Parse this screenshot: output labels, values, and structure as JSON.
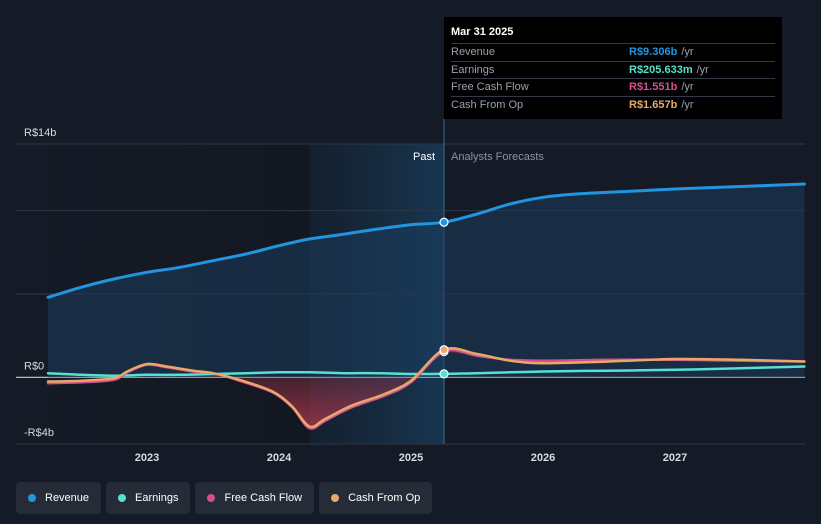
{
  "chart_data": {
    "type": "line",
    "currency": "R$",
    "x_domain": [
      2022.25,
      2027.98
    ],
    "ylim": [
      -4,
      14
    ],
    "y_axis_labels": [
      {
        "value": 14,
        "label": "R$14b"
      },
      {
        "value": 0,
        "label": "R$0"
      },
      {
        "value": -4,
        "label": "-R$4b"
      }
    ],
    "gridlines": [
      14,
      10,
      5,
      0,
      -4
    ],
    "x_ticks": [
      {
        "value": 2023,
        "label": "2023"
      },
      {
        "value": 2024,
        "label": "2024"
      },
      {
        "value": 2025,
        "label": "2025"
      },
      {
        "value": 2026,
        "label": "2026"
      },
      {
        "value": 2027,
        "label": "2027"
      }
    ],
    "past_label": "Past",
    "forecast_label": "Analysts Forecasts",
    "divider_x": 2025.25,
    "highlight_start": 2024.23,
    "series": [
      {
        "name": "Revenue",
        "color": "#2394df",
        "fill": true,
        "points": [
          [
            2022.25,
            4.8
          ],
          [
            2022.5,
            5.4
          ],
          [
            2022.75,
            5.9
          ],
          [
            2023.0,
            6.3
          ],
          [
            2023.25,
            6.6
          ],
          [
            2023.5,
            7.0
          ],
          [
            2023.75,
            7.4
          ],
          [
            2024.0,
            7.9
          ],
          [
            2024.23,
            8.3
          ],
          [
            2024.5,
            8.6
          ],
          [
            2024.75,
            8.9
          ],
          [
            2025.0,
            9.15
          ],
          [
            2025.25,
            9.306
          ],
          [
            2025.5,
            9.8
          ],
          [
            2025.75,
            10.4
          ],
          [
            2026.0,
            10.8
          ],
          [
            2026.25,
            11.0
          ],
          [
            2026.5,
            11.1
          ],
          [
            2026.75,
            11.2
          ],
          [
            2027.0,
            11.3
          ],
          [
            2027.5,
            11.45
          ],
          [
            2027.98,
            11.6
          ]
        ]
      },
      {
        "name": "Earnings",
        "color": "#58e1d0",
        "fill": false,
        "points": [
          [
            2022.25,
            0.25
          ],
          [
            2022.5,
            0.15
          ],
          [
            2022.75,
            0.1
          ],
          [
            2023.0,
            0.15
          ],
          [
            2023.25,
            0.15
          ],
          [
            2023.5,
            0.2
          ],
          [
            2023.75,
            0.25
          ],
          [
            2024.0,
            0.3
          ],
          [
            2024.23,
            0.3
          ],
          [
            2024.5,
            0.25
          ],
          [
            2024.75,
            0.25
          ],
          [
            2025.0,
            0.2
          ],
          [
            2025.25,
            0.2056
          ],
          [
            2025.5,
            0.25
          ],
          [
            2025.75,
            0.3
          ],
          [
            2026.0,
            0.35
          ],
          [
            2026.5,
            0.4
          ],
          [
            2027.0,
            0.45
          ],
          [
            2027.5,
            0.55
          ],
          [
            2027.98,
            0.65
          ]
        ]
      },
      {
        "name": "Free Cash Flow",
        "color": "#d44f8f",
        "fill": false,
        "points": [
          [
            2022.25,
            -0.35
          ],
          [
            2022.5,
            -0.3
          ],
          [
            2022.75,
            -0.15
          ],
          [
            2022.85,
            0.3
          ],
          [
            2023.0,
            0.75
          ],
          [
            2023.15,
            0.6
          ],
          [
            2023.35,
            0.35
          ],
          [
            2023.5,
            0.25
          ],
          [
            2023.7,
            -0.2
          ],
          [
            2023.95,
            -0.9
          ],
          [
            2024.1,
            -1.8
          ],
          [
            2024.23,
            -3.05
          ],
          [
            2024.35,
            -2.6
          ],
          [
            2024.55,
            -1.8
          ],
          [
            2024.8,
            -1.1
          ],
          [
            2025.0,
            -0.3
          ],
          [
            2025.25,
            1.551
          ],
          [
            2025.5,
            1.3
          ],
          [
            2025.75,
            1.05
          ],
          [
            2026.0,
            1.0
          ],
          [
            2026.5,
            1.05
          ],
          [
            2027.0,
            1.05
          ],
          [
            2027.5,
            1.0
          ],
          [
            2027.98,
            0.95
          ]
        ]
      },
      {
        "name": "Cash From Op",
        "color": "#e8a86a",
        "fill": false,
        "points": [
          [
            2022.25,
            -0.25
          ],
          [
            2022.5,
            -0.2
          ],
          [
            2022.75,
            -0.05
          ],
          [
            2022.85,
            0.35
          ],
          [
            2023.0,
            0.8
          ],
          [
            2023.15,
            0.65
          ],
          [
            2023.35,
            0.4
          ],
          [
            2023.5,
            0.25
          ],
          [
            2023.7,
            -0.15
          ],
          [
            2023.95,
            -0.85
          ],
          [
            2024.1,
            -1.75
          ],
          [
            2024.23,
            -2.95
          ],
          [
            2024.35,
            -2.5
          ],
          [
            2024.55,
            -1.7
          ],
          [
            2024.8,
            -1.0
          ],
          [
            2025.0,
            -0.2
          ],
          [
            2025.25,
            1.657
          ],
          [
            2025.5,
            1.4
          ],
          [
            2025.75,
            1.0
          ],
          [
            2026.0,
            0.85
          ],
          [
            2026.5,
            0.95
          ],
          [
            2027.0,
            1.1
          ],
          [
            2027.5,
            1.05
          ],
          [
            2027.98,
            0.95
          ]
        ]
      }
    ],
    "tooltip": {
      "date": "Mar 31 2025",
      "x": 2025.25,
      "rows": [
        {
          "name": "Revenue",
          "value": "R$9.306b",
          "unit": "/yr",
          "color": "#2394df"
        },
        {
          "name": "Earnings",
          "value": "R$205.633m",
          "unit": "/yr",
          "color": "#58e1d0"
        },
        {
          "name": "Free Cash Flow",
          "value": "R$1.551b",
          "unit": "/yr",
          "color": "#d44f8f"
        },
        {
          "name": "Cash From Op",
          "value": "R$1.657b",
          "unit": "/yr",
          "color": "#e8a86a"
        }
      ]
    }
  },
  "legend": [
    {
      "label": "Revenue",
      "color": "#2394df"
    },
    {
      "label": "Earnings",
      "color": "#58e1d0"
    },
    {
      "label": "Free Cash Flow",
      "color": "#d44f8f"
    },
    {
      "label": "Cash From Op",
      "color": "#e8a86a"
    }
  ]
}
